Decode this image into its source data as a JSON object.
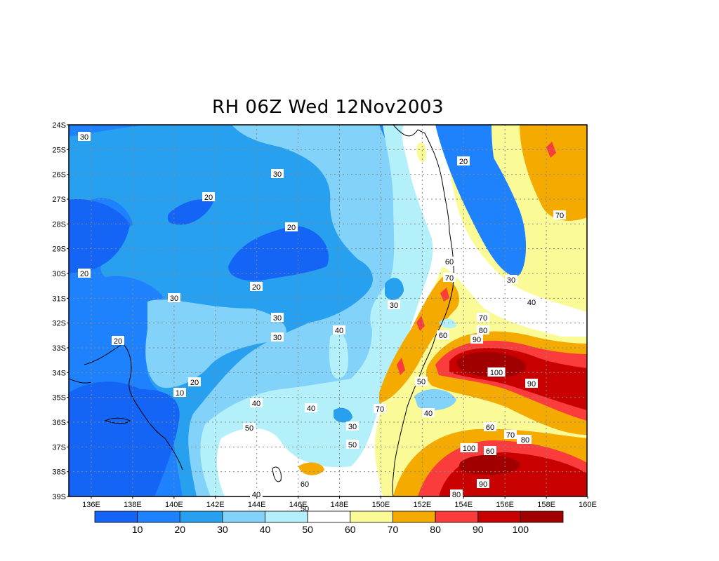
{
  "title": "RH 06Z Wed 12Nov2003",
  "lat_labels": [
    "24S",
    "25S",
    "26S",
    "27S",
    "28S",
    "29S",
    "30S",
    "31S",
    "32S",
    "33S",
    "34S",
    "35S",
    "36S",
    "37S",
    "38S",
    "39S"
  ],
  "lon_labels": [
    "136E",
    "138E",
    "140E",
    "142E",
    "144E",
    "146E",
    "148E",
    "150E",
    "152E",
    "154E",
    "156E",
    "158E",
    "160E"
  ],
  "colorbar": {
    "colors": [
      "#1464f5",
      "#1e82ff",
      "#28a0f0",
      "#82d2fa",
      "#b4f0fa",
      "#ffffff",
      "#fafa96",
      "#f5aa00",
      "#fa3c3c",
      "#c80000",
      "#a00000"
    ],
    "labels": [
      "10",
      "20",
      "30",
      "40",
      "50",
      "60",
      "70",
      "80",
      "90",
      "100"
    ]
  },
  "contour_labels": [
    {
      "text": "30"
    },
    {
      "text": "30"
    },
    {
      "text": "20"
    },
    {
      "text": "20"
    },
    {
      "text": "20"
    },
    {
      "text": "20"
    },
    {
      "text": "30"
    },
    {
      "text": "30"
    },
    {
      "text": "30"
    },
    {
      "text": "20"
    },
    {
      "text": "20"
    },
    {
      "text": "10"
    },
    {
      "text": "40"
    },
    {
      "text": "40"
    },
    {
      "text": "40"
    },
    {
      "text": "30"
    },
    {
      "text": "50"
    },
    {
      "text": "50"
    },
    {
      "text": "40"
    },
    {
      "text": "60"
    },
    {
      "text": "50"
    },
    {
      "text": "70"
    },
    {
      "text": "40"
    },
    {
      "text": "60"
    },
    {
      "text": "60"
    },
    {
      "text": "70"
    },
    {
      "text": "80"
    },
    {
      "text": "70"
    },
    {
      "text": "80"
    },
    {
      "text": "90"
    },
    {
      "text": "100"
    },
    {
      "text": "90"
    },
    {
      "text": "50"
    },
    {
      "text": "40"
    },
    {
      "text": "60"
    },
    {
      "text": "60"
    },
    {
      "text": "70"
    },
    {
      "text": "80"
    },
    {
      "text": "100"
    },
    {
      "text": "90"
    },
    {
      "text": "80"
    },
    {
      "text": "20"
    },
    {
      "text": "70"
    },
    {
      "text": "30"
    },
    {
      "text": "40"
    },
    {
      "text": "30"
    },
    {
      "text": "40"
    }
  ]
}
